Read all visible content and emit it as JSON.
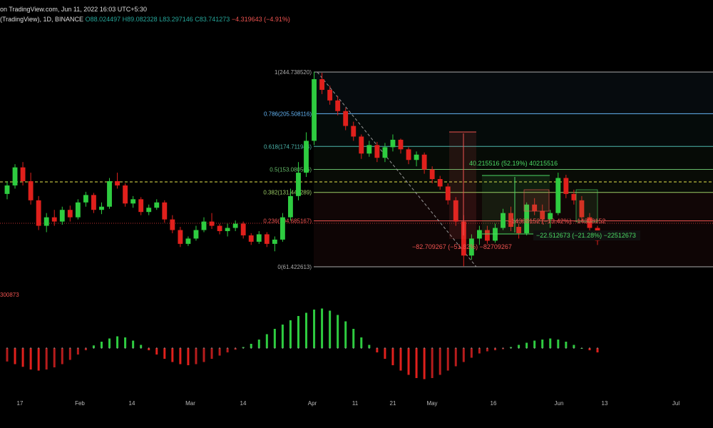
{
  "header": {
    "title": "on TradingView.com, Jun 11, 2022 16:03 UTC+5:30",
    "symbol": "(TradingView), 1D, BINANCE",
    "open": "O88.024497",
    "high": "H89.082328",
    "low": "L83.297146",
    "close": "C83.741273",
    "change": "−4.319643 (−4.91%)"
  },
  "indicator_label": "300873",
  "colors": {
    "up": "#26a69a",
    "down": "#ef5350",
    "bright_up": "#2ecc40",
    "bright_down": "#e0201c",
    "dashed_level": "#e6e64c",
    "price_line": "#c03030"
  },
  "chart_data": [
    {
      "type": "candlestick",
      "x_tick_labels": [
        "17",
        "Feb",
        "14",
        "Mar",
        "14",
        "Apr",
        "11",
        "21",
        "May",
        "16",
        "Jun",
        "13",
        "Jul"
      ],
      "fib_levels": [
        {
          "label": "1(244.738520)",
          "value": 244.73852,
          "color": "#aaaaaa"
        },
        {
          "label": "0.786(205.508116)",
          "value": 205.508116,
          "color": "#64b5f6"
        },
        {
          "label": "0.618(174.711944)",
          "value": 174.711944,
          "color": "#4db6ac"
        },
        {
          "label": "0.5(153.080566)",
          "value": 153.080566,
          "color": "#66bb6a"
        },
        {
          "label": "0.382(131.449289)",
          "value": 131.449289,
          "color": "#9ccc65"
        },
        {
          "label": "0.236(104.685167)",
          "value": 104.685167,
          "color": "#ef5350"
        },
        {
          "label": "0(61.422613)",
          "value": 61.422613,
          "color": "#aaaaaa"
        }
      ],
      "measurements": [
        {
          "label": "40.215516 (52.19%) 40215516",
          "color": "#4cd964"
        },
        {
          "label": "−82.709267 (−51.82%) −82709267",
          "color": "#ef5350"
        },
        {
          "label": "−14308152 (−13.42%) −14308152",
          "color": "#ef5350"
        },
        {
          "label": "−22.512673 (−21.28%) −22512673",
          "color": "#4cd964"
        }
      ],
      "candles": [
        [
          130,
          142,
          125,
          138
        ],
        [
          138,
          158,
          135,
          155
        ],
        [
          155,
          160,
          138,
          142
        ],
        [
          142,
          150,
          120,
          124
        ],
        [
          124,
          128,
          96,
          100
        ],
        [
          100,
          112,
          94,
          108
        ],
        [
          108,
          115,
          100,
          104
        ],
        [
          104,
          118,
          101,
          115
        ],
        [
          115,
          119,
          104,
          108
        ],
        [
          108,
          125,
          106,
          122
        ],
        [
          122,
          132,
          118,
          129
        ],
        [
          129,
          131,
          112,
          115
        ],
        [
          115,
          122,
          111,
          118
        ],
        [
          118,
          145,
          116,
          142
        ],
        [
          142,
          150,
          135,
          138
        ],
        [
          138,
          140,
          118,
          121
        ],
        [
          121,
          128,
          117,
          125
        ],
        [
          125,
          127,
          110,
          113
        ],
        [
          113,
          120,
          110,
          117
        ],
        [
          117,
          125,
          115,
          122
        ],
        [
          122,
          124,
          103,
          106
        ],
        [
          106,
          110,
          93,
          96
        ],
        [
          96,
          99,
          80,
          83
        ],
        [
          83,
          90,
          81,
          88
        ],
        [
          88,
          100,
          86,
          96
        ],
        [
          96,
          108,
          94,
          104
        ],
        [
          104,
          112,
          97,
          100
        ],
        [
          100,
          102,
          92,
          95
        ],
        [
          95,
          102,
          90,
          98
        ],
        [
          98,
          105,
          95,
          102
        ],
        [
          102,
          104,
          88,
          91
        ],
        [
          91,
          93,
          82,
          85
        ],
        [
          85,
          95,
          83,
          92
        ],
        [
          92,
          94,
          80,
          83
        ],
        [
          83,
          90,
          76,
          87
        ],
        [
          87,
          112,
          85,
          108
        ],
        [
          108,
          135,
          105,
          128
        ],
        [
          128,
          160,
          124,
          150
        ],
        [
          150,
          188,
          146,
          180
        ],
        [
          180,
          245,
          176,
          238
        ],
        [
          238,
          244,
          224,
          228
        ],
        [
          228,
          232,
          214,
          218
        ],
        [
          218,
          222,
          204,
          208
        ],
        [
          208,
          211,
          190,
          194
        ],
        [
          194,
          198,
          180,
          184
        ],
        [
          184,
          186,
          163,
          168
        ],
        [
          168,
          180,
          165,
          176
        ],
        [
          176,
          179,
          160,
          164
        ],
        [
          164,
          178,
          160,
          174
        ],
        [
          174,
          186,
          170,
          181
        ],
        [
          181,
          182,
          168,
          172
        ],
        [
          172,
          174,
          158,
          162
        ],
        [
          162,
          170,
          156,
          167
        ],
        [
          167,
          169,
          149,
          153
        ],
        [
          153,
          156,
          140,
          144
        ],
        [
          144,
          147,
          134,
          137
        ],
        [
          137,
          140,
          120,
          124
        ],
        [
          124,
          127,
          100,
          104
        ],
        [
          104,
          110,
          62,
          72
        ],
        [
          72,
          92,
          68,
          88
        ],
        [
          88,
          100,
          82,
          96
        ],
        [
          96,
          100,
          83,
          86
        ],
        [
          86,
          102,
          84,
          98
        ],
        [
          98,
          116,
          96,
          112
        ],
        [
          112,
          118,
          95,
          99
        ],
        [
          99,
          102,
          88,
          93
        ],
        [
          93,
          122,
          91,
          120
        ],
        [
          120,
          126,
          110,
          114
        ],
        [
          114,
          120,
          102,
          106
        ],
        [
          106,
          115,
          98,
          112
        ],
        [
          112,
          150,
          110,
          145
        ],
        [
          145,
          148,
          126,
          130
        ],
        [
          130,
          134,
          120,
          124
        ],
        [
          124,
          128,
          105,
          108
        ],
        [
          108,
          112,
          94,
          98
        ],
        [
          98,
          100,
          82,
          86
        ]
      ],
      "indicator_values": [
        -25,
        -30,
        -35,
        -40,
        -42,
        -40,
        -36,
        -30,
        -22,
        -12,
        -4,
        5,
        12,
        18,
        22,
        20,
        14,
        6,
        -4,
        -12,
        -20,
        -26,
        -30,
        -32,
        -30,
        -26,
        -20,
        -14,
        -8,
        -3,
        2,
        8,
        16,
        26,
        36,
        44,
        52,
        60,
        66,
        72,
        74,
        70,
        62,
        50,
        36,
        20,
        6,
        -8,
        -20,
        -32,
        -42,
        -50,
        -56,
        -58,
        -56,
        -50,
        -42,
        -34,
        -26,
        -18,
        -10,
        -6,
        -4,
        -2,
        2,
        6,
        10,
        14,
        16,
        18,
        16,
        12,
        6,
        0,
        -4,
        -8
      ]
    }
  ]
}
